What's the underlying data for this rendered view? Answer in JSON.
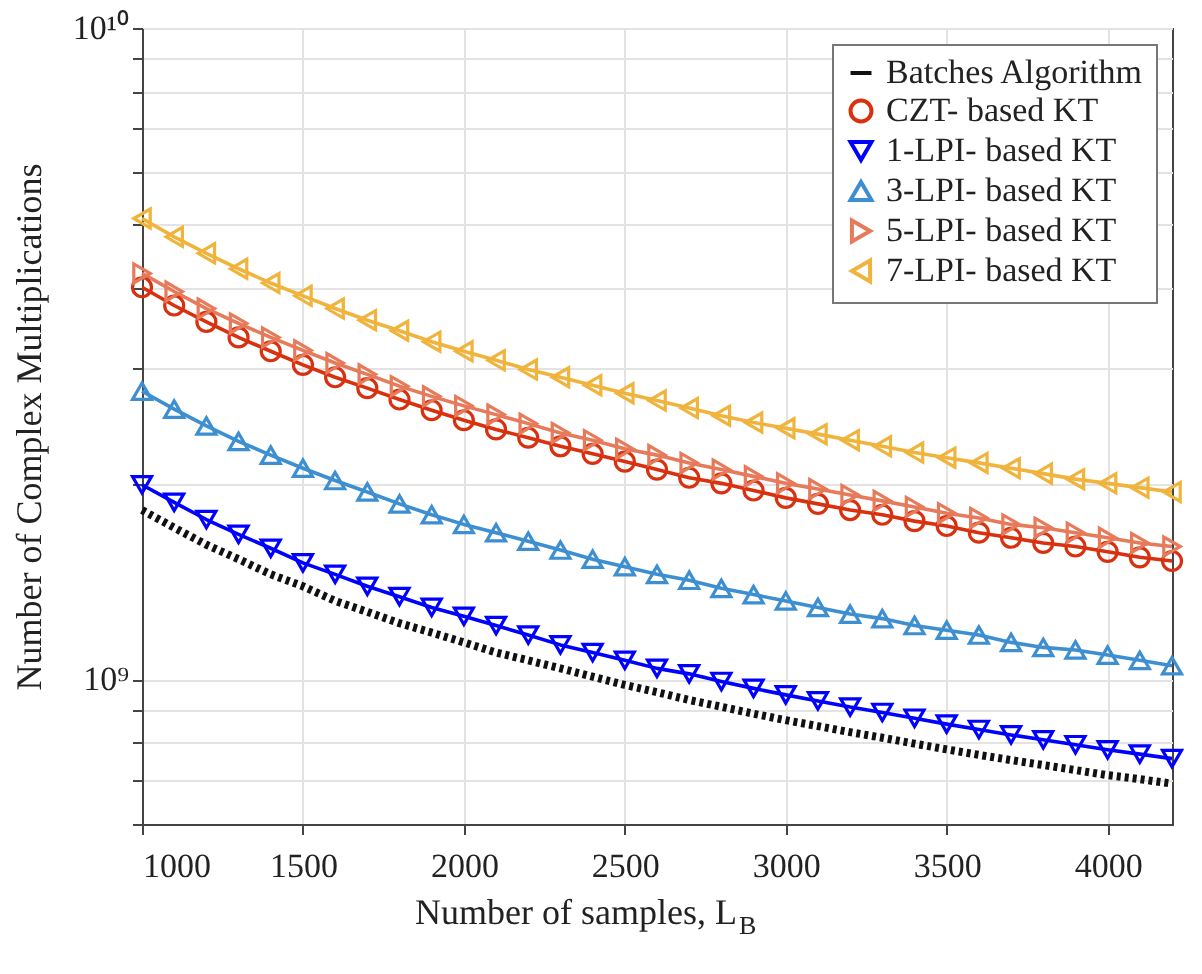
{
  "chart_data": {
    "type": "line",
    "xlabel": "Number of samples, L$_{B}$",
    "ylabel": "Number of Complex Multiplications",
    "x": [
      1000,
      1100,
      1200,
      1300,
      1400,
      1500,
      1600,
      1700,
      1800,
      1900,
      2000,
      2100,
      2200,
      2300,
      2400,
      2500,
      2600,
      2700,
      2800,
      2900,
      3000,
      3100,
      3200,
      3300,
      3400,
      3500,
      3600,
      3700,
      3800,
      3900,
      4000,
      4100,
      4200
    ],
    "series": [
      {
        "name": "Batches Algorithm",
        "color": "#111111",
        "marker": "none",
        "line_style": "dotted",
        "values": [
          1820000000.0,
          1710000000.0,
          1610000000.0,
          1530000000.0,
          1450000000.0,
          1390000000.0,
          1320000000.0,
          1270000000.0,
          1220000000.0,
          1180000000.0,
          1140000000.0,
          1100000000.0,
          1070000000.0,
          1040000000.0,
          1010000000.0,
          981000000.0,
          956000000.0,
          930000000.0,
          908000000.0,
          886000000.0,
          866000000.0,
          848000000.0,
          830000000.0,
          814000000.0,
          797000000.0,
          781000000.0,
          766000000.0,
          752000000.0,
          739000000.0,
          726000000.0,
          713000000.0,
          703000000.0,
          692000000.0
        ]
      },
      {
        "name": "CZT- based KT",
        "color": "#d9310f",
        "marker": "circle",
        "line_style": "solid",
        "values": [
          4000000000.0,
          3750000000.0,
          3540000000.0,
          3350000000.0,
          3190000000.0,
          3040000000.0,
          2910000000.0,
          2800000000.0,
          2690000000.0,
          2590000000.0,
          2500000000.0,
          2420000000.0,
          2350000000.0,
          2280000000.0,
          2220000000.0,
          2160000000.0,
          2100000000.0,
          2040000000.0,
          2000000000.0,
          1950000000.0,
          1900000000.0,
          1860000000.0,
          1820000000.0,
          1790000000.0,
          1750000000.0,
          1720000000.0,
          1680000000.0,
          1650000000.0,
          1620000000.0,
          1600000000.0,
          1570000000.0,
          1540000000.0,
          1520000000.0
        ]
      },
      {
        "name": "1-LPI- based KT",
        "color": "#0000ff",
        "marker": "triangle-down",
        "line_style": "solid",
        "values": [
          1990000000.0,
          1870000000.0,
          1760000000.0,
          1670000000.0,
          1590000000.0,
          1510000000.0,
          1450000000.0,
          1390000000.0,
          1340000000.0,
          1290000000.0,
          1250000000.0,
          1210000000.0,
          1170000000.0,
          1130000000.0,
          1100000000.0,
          1070000000.0,
          1040000000.0,
          1020000000.0,
          993000000.0,
          969000000.0,
          947000000.0,
          927000000.0,
          907000000.0,
          890000000.0,
          872000000.0,
          854000000.0,
          838000000.0,
          822000000.0,
          808000000.0,
          794000000.0,
          780000000.0,
          768000000.0,
          756000000.0
        ]
      },
      {
        "name": "3-LPI- based KT",
        "color": "#3d8fd1",
        "marker": "triangle-up",
        "line_style": "solid",
        "values": [
          2770000000.0,
          2600000000.0,
          2450000000.0,
          2320000000.0,
          2210000000.0,
          2110000000.0,
          2020000000.0,
          1940000000.0,
          1860000000.0,
          1790000000.0,
          1730000000.0,
          1680000000.0,
          1630000000.0,
          1580000000.0,
          1530000000.0,
          1490000000.0,
          1450000000.0,
          1420000000.0,
          1380000000.0,
          1350000000.0,
          1320000000.0,
          1290000000.0,
          1260000000.0,
          1240000000.0,
          1210000000.0,
          1190000000.0,
          1170000000.0,
          1140000000.0,
          1120000000.0,
          1110000000.0,
          1090000000.0,
          1070000000.0,
          1050000000.0
        ]
      },
      {
        "name": "5-LPI- based KT",
        "color": "#e67a5a",
        "marker": "triangle-right",
        "line_style": "solid",
        "values": [
          4200000000.0,
          3940000000.0,
          3710000000.0,
          3520000000.0,
          3350000000.0,
          3200000000.0,
          3060000000.0,
          2940000000.0,
          2820000000.0,
          2720000000.0,
          2630000000.0,
          2550000000.0,
          2470000000.0,
          2390000000.0,
          2330000000.0,
          2260000000.0,
          2210000000.0,
          2150000000.0,
          2100000000.0,
          2050000000.0,
          2000000000.0,
          1960000000.0,
          1920000000.0,
          1880000000.0,
          1840000000.0,
          1800000000.0,
          1770000000.0,
          1730000000.0,
          1710000000.0,
          1680000000.0,
          1650000000.0,
          1620000000.0,
          1600000000.0
        ]
      },
      {
        "name": "7-LPI- based KT",
        "color": "#f0b43c",
        "marker": "triangle-left",
        "line_style": "solid",
        "values": [
          5100000000.0,
          4780000000.0,
          4510000000.0,
          4270000000.0,
          4060000000.0,
          3880000000.0,
          3710000000.0,
          3560000000.0,
          3430000000.0,
          3300000000.0,
          3190000000.0,
          3090000000.0,
          2990000000.0,
          2910000000.0,
          2830000000.0,
          2750000000.0,
          2680000000.0,
          2610000000.0,
          2540000000.0,
          2480000000.0,
          2430000000.0,
          2380000000.0,
          2330000000.0,
          2280000000.0,
          2230000000.0,
          2190000000.0,
          2150000000.0,
          2110000000.0,
          2070000000.0,
          2030000000.0,
          2000000000.0,
          1970000000.0,
          1940000000.0
        ]
      }
    ],
    "xlim": [
      1000,
      4200
    ],
    "xticks": [
      1000,
      1500,
      2000,
      2500,
      3000,
      3500,
      4000
    ],
    "ylim": [
      600000000.0,
      10000000000.0
    ],
    "yticks": [
      {
        "value": 600000000.0,
        "label": null
      },
      {
        "value": 700000000.0,
        "label": null
      },
      {
        "value": 800000000.0,
        "label": null
      },
      {
        "value": 900000000.0,
        "label": null
      },
      {
        "value": 1000000000.0,
        "label": "10⁹"
      },
      {
        "value": 2000000000.0,
        "label": null
      },
      {
        "value": 3000000000.0,
        "label": null
      },
      {
        "value": 4000000000.0,
        "label": null
      },
      {
        "value": 5000000000.0,
        "label": null
      },
      {
        "value": 6000000000.0,
        "label": null
      },
      {
        "value": 7000000000.0,
        "label": null
      },
      {
        "value": 8000000000.0,
        "label": null
      },
      {
        "value": 9000000000.0,
        "label": null
      },
      {
        "value": 10000000000.0,
        "label": "10¹⁰"
      }
    ],
    "log": true,
    "grid": true,
    "legend": "top right"
  }
}
